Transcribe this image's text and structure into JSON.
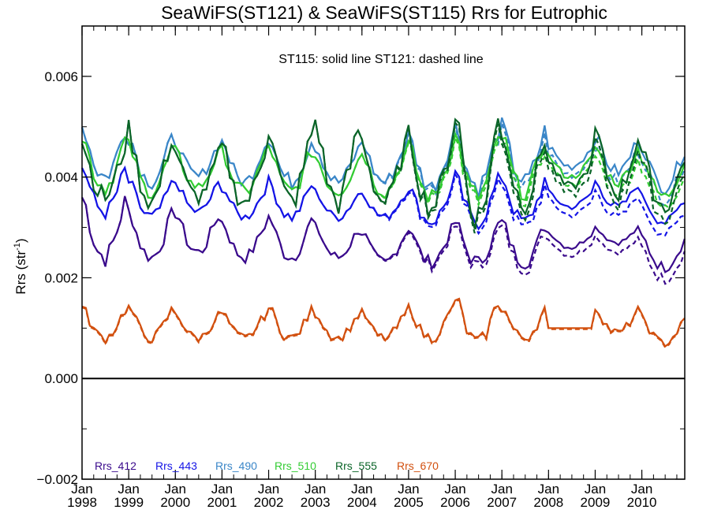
{
  "chart_data": {
    "type": "line",
    "title": "SeaWiFS(ST121) & SeaWiFS(ST115)  Rrs for Eutrophic",
    "annotation": "ST115: solid line   ST121: dashed line",
    "xlabel": "",
    "ylabel_main": "Rrs (str",
    "ylabel_sup": "-1",
    "ylabel_close": ")",
    "ylim": [
      -0.002,
      0.007
    ],
    "xlim": [
      1998.0,
      2010.92
    ],
    "grid": false,
    "legend_placement": "bottom-left",
    "yticks": [
      {
        "value": -0.002,
        "label": "−0.002"
      },
      {
        "value": 0.0,
        "label": "0.000"
      },
      {
        "value": 0.002,
        "label": "0.002"
      },
      {
        "value": 0.004,
        "label": "0.004"
      },
      {
        "value": 0.006,
        "label": "0.006"
      }
    ],
    "xticks": [
      {
        "value": 1998,
        "month": "Jan",
        "year": "1998"
      },
      {
        "value": 1999,
        "month": "Jan",
        "year": "1999"
      },
      {
        "value": 2000,
        "month": "Jan",
        "year": "2000"
      },
      {
        "value": 2001,
        "month": "Jan",
        "year": "2001"
      },
      {
        "value": 2002,
        "month": "Jan",
        "year": "2002"
      },
      {
        "value": 2003,
        "month": "Jan",
        "year": "2003"
      },
      {
        "value": 2004,
        "month": "Jan",
        "year": "2004"
      },
      {
        "value": 2005,
        "month": "Jan",
        "year": "2005"
      },
      {
        "value": 2006,
        "month": "Jan",
        "year": "2006"
      },
      {
        "value": 2007,
        "month": "Jan",
        "year": "2007"
      },
      {
        "value": 2008,
        "month": "Jan",
        "year": "2008"
      },
      {
        "value": 2009,
        "month": "Jan",
        "year": "2009"
      },
      {
        "value": 2010,
        "month": "Jan",
        "year": "2010"
      }
    ],
    "series": [
      {
        "name": "Rrs_412",
        "color": "#3a0a8c",
        "offset": 0.0022,
        "annual": [
          0.0036,
          0.0033,
          0.0033,
          0.0031,
          0.0032,
          0.003,
          0.0029,
          0.003,
          0.0031,
          0.0031,
          0.0029,
          0.003,
          0.0028
        ],
        "trough": [
          0.0024,
          0.0024,
          0.0025,
          0.0024,
          0.0024,
          0.0024,
          0.0023,
          0.0023,
          0.0023,
          0.0023,
          0.0026,
          0.0027,
          0.0022
        ],
        "dashed_end": [
          0.0035,
          0.0032,
          0.0032,
          0.0031,
          0.0031,
          0.0029,
          0.0028,
          0.0029,
          0.0029,
          0.0029,
          0.0027,
          0.0027,
          0.0025
        ]
      },
      {
        "name": "Rrs_443",
        "color": "#1414e6",
        "annual": [
          0.0042,
          0.0039,
          0.0039,
          0.0038,
          0.0039,
          0.0037,
          0.0037,
          0.0038,
          0.004,
          0.004,
          0.0037,
          0.0039,
          0.0036
        ],
        "trough": [
          0.0033,
          0.0032,
          0.0033,
          0.0032,
          0.0032,
          0.0032,
          0.0032,
          0.0031,
          0.0031,
          0.0031,
          0.0034,
          0.0034,
          0.0031
        ]
      },
      {
        "name": "Rrs_490",
        "color": "#3a86c8",
        "annual": [
          0.005,
          0.0048,
          0.0047,
          0.0047,
          0.0048,
          0.0046,
          0.0047,
          0.0048,
          0.005,
          0.005,
          0.0046,
          0.0048,
          0.0046
        ],
        "trough": [
          0.004,
          0.0039,
          0.004,
          0.0039,
          0.0039,
          0.0039,
          0.0039,
          0.0038,
          0.0038,
          0.0039,
          0.0042,
          0.0041,
          0.0038
        ]
      },
      {
        "name": "Rrs_510",
        "color": "#33cc33",
        "annual": [
          0.0048,
          0.0046,
          0.0045,
          0.0045,
          0.0046,
          0.0044,
          0.0045,
          0.0046,
          0.0048,
          0.0048,
          0.0044,
          0.0046,
          0.0044
        ],
        "trough": [
          0.0038,
          0.0037,
          0.0038,
          0.0037,
          0.0037,
          0.0037,
          0.0037,
          0.0036,
          0.0036,
          0.0037,
          0.004,
          0.0039,
          0.0036
        ]
      },
      {
        "name": "Rrs_555",
        "color": "#0a6428",
        "annual": [
          0.0047,
          0.0049,
          0.0045,
          0.0046,
          0.005,
          0.0051,
          0.0047,
          0.0048,
          0.0053,
          0.0049,
          0.0043,
          0.0049,
          0.0045
        ],
        "trough": [
          0.0036,
          0.0035,
          0.0036,
          0.0035,
          0.0035,
          0.0035,
          0.0035,
          0.0034,
          0.0032,
          0.0035,
          0.0038,
          0.0037,
          0.0034
        ]
      },
      {
        "name": "Rrs_670",
        "color": "#d2500f",
        "annual": [
          0.0014,
          0.0014,
          0.0013,
          0.0013,
          0.0014,
          0.0013,
          0.0013,
          0.0014,
          0.0016,
          0.0014,
          0.001,
          0.0014,
          0.0012
        ],
        "trough": [
          0.0008,
          0.0008,
          0.0008,
          0.0008,
          0.0008,
          0.0008,
          0.0008,
          0.0008,
          0.0007,
          0.0008,
          0.001,
          0.0009,
          0.0007
        ]
      }
    ]
  }
}
